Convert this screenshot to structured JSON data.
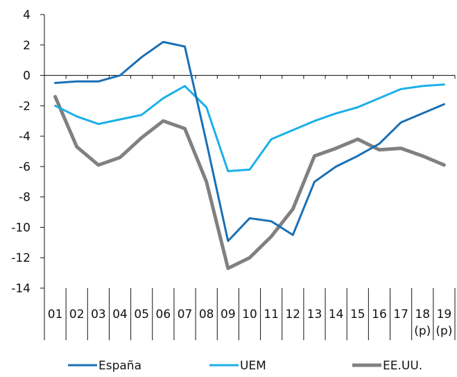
{
  "chart_data": {
    "type": "line",
    "title": "",
    "xlabel": "",
    "ylabel": "",
    "categories": [
      "01",
      "02",
      "03",
      "04",
      "05",
      "06",
      "07",
      "08",
      "09",
      "10",
      "11",
      "12",
      "13",
      "14",
      "15",
      "16",
      "17",
      "18\n(p)",
      "19\n(p)"
    ],
    "ylim": [
      -14,
      4
    ],
    "yticks": [
      4,
      2,
      0,
      -2,
      -4,
      -6,
      -8,
      -10,
      -12,
      -14
    ],
    "grid": false,
    "legend_position": "bottom",
    "series": [
      {
        "name": "España",
        "color": "#1a6fb5",
        "values": [
          -0.5,
          -0.4,
          -0.4,
          0.0,
          1.2,
          2.2,
          1.9,
          -4.4,
          -10.9,
          -9.4,
          -9.6,
          -10.5,
          -7.0,
          -6.0,
          -5.3,
          -4.5,
          -3.1,
          -2.5,
          -1.9
        ]
      },
      {
        "name": "UEM",
        "color": "#1ab0e8",
        "values": [
          -2.0,
          -2.7,
          -3.2,
          -2.9,
          -2.6,
          -1.5,
          -0.7,
          -2.1,
          -6.3,
          -6.2,
          -4.2,
          -3.6,
          -3.0,
          -2.5,
          -2.1,
          -1.5,
          -0.9,
          -0.7,
          -0.6
        ]
      },
      {
        "name": "EE.UU.",
        "color": "#808080",
        "values": [
          -1.4,
          -4.7,
          -5.9,
          -5.4,
          -4.1,
          -3.0,
          -3.5,
          -7.0,
          -12.7,
          -12.0,
          -10.6,
          -8.8,
          -5.3,
          -4.8,
          -4.2,
          -4.9,
          -4.8,
          -5.3,
          -5.9
        ]
      }
    ]
  }
}
